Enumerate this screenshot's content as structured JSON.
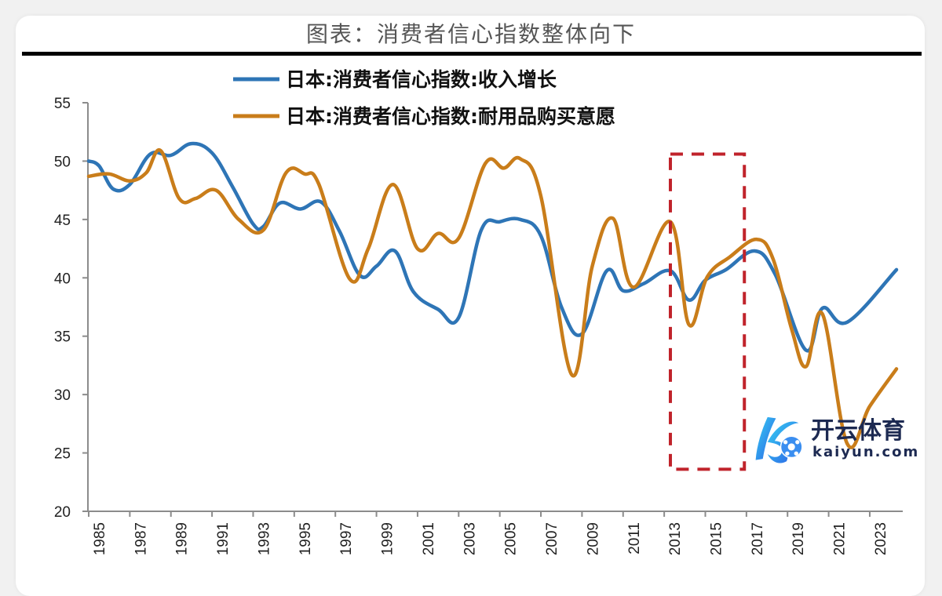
{
  "title": "图表：消费者信心指数整体向下",
  "chart_data": {
    "type": "line",
    "title": "图表：消费者信心指数整体向下",
    "xlabel": "",
    "ylabel": "",
    "xlim": [
      1985,
      2024.3
    ],
    "ylim": [
      20,
      55
    ],
    "yticks": [
      20,
      25,
      30,
      35,
      40,
      45,
      50,
      55
    ],
    "xtick_labels": [
      "1985",
      "1987",
      "1989",
      "1991",
      "1993",
      "1995",
      "1997",
      "1999",
      "2001",
      "2003",
      "2005",
      "2007",
      "2009",
      "2011",
      "2013",
      "2015",
      "2017",
      "2019",
      "2021",
      "2023"
    ],
    "legend_position": "top-center",
    "grid": false,
    "series": [
      {
        "name": "日本:消费者信心指数:收入增长",
        "color": "#2e75b6",
        "points": [
          [
            1985.0,
            50.0
          ],
          [
            1985.5,
            49.6
          ],
          [
            1986.2,
            47.6
          ],
          [
            1987.0,
            48.0
          ],
          [
            1988.0,
            50.6
          ],
          [
            1989.0,
            50.5
          ],
          [
            1990.0,
            51.5
          ],
          [
            1991.0,
            50.7
          ],
          [
            1992.0,
            47.8
          ],
          [
            1993.0,
            44.6
          ],
          [
            1993.5,
            44.4
          ],
          [
            1994.3,
            46.4
          ],
          [
            1995.3,
            45.9
          ],
          [
            1996.3,
            46.5
          ],
          [
            1997.2,
            44.0
          ],
          [
            1998.2,
            40.2
          ],
          [
            1999.0,
            41.0
          ],
          [
            1999.9,
            42.3
          ],
          [
            2000.8,
            38.8
          ],
          [
            2002.0,
            37.3
          ],
          [
            2003.0,
            36.6
          ],
          [
            2004.1,
            44.1
          ],
          [
            2005.0,
            44.8
          ],
          [
            2006.0,
            45.0
          ],
          [
            2007.0,
            43.6
          ],
          [
            2008.0,
            37.5
          ],
          [
            2009.0,
            35.2
          ],
          [
            2010.2,
            40.6
          ],
          [
            2011.0,
            38.9
          ],
          [
            2012.0,
            39.5
          ],
          [
            2013.3,
            40.6
          ],
          [
            2014.2,
            38.1
          ],
          [
            2015.0,
            39.8
          ],
          [
            2016.0,
            40.7
          ],
          [
            2017.4,
            42.3
          ],
          [
            2018.4,
            40.3
          ],
          [
            2019.9,
            33.8
          ],
          [
            2020.7,
            37.4
          ],
          [
            2021.9,
            36.2
          ],
          [
            2024.3,
            40.7
          ]
        ]
      },
      {
        "name": "日本:消费者信心指数:耐用品购买意愿",
        "color": "#c97d1a",
        "points": [
          [
            1985.0,
            48.7
          ],
          [
            1986.0,
            48.9
          ],
          [
            1987.0,
            48.3
          ],
          [
            1987.8,
            49.0
          ],
          [
            1988.5,
            50.9
          ],
          [
            1989.4,
            46.8
          ],
          [
            1990.2,
            46.8
          ],
          [
            1991.2,
            47.5
          ],
          [
            1992.3,
            45.0
          ],
          [
            1993.5,
            44.1
          ],
          [
            1994.6,
            49.0
          ],
          [
            1995.5,
            48.9
          ],
          [
            1996.2,
            48.0
          ],
          [
            1997.7,
            39.9
          ],
          [
            1998.6,
            42.5
          ],
          [
            1999.8,
            48.0
          ],
          [
            2001.0,
            42.5
          ],
          [
            2002.0,
            43.8
          ],
          [
            2003.0,
            43.4
          ],
          [
            2004.3,
            49.8
          ],
          [
            2005.2,
            49.4
          ],
          [
            2006.0,
            50.2
          ],
          [
            2007.0,
            47.0
          ],
          [
            2008.5,
            31.7
          ],
          [
            2009.5,
            41.0
          ],
          [
            2010.5,
            45.1
          ],
          [
            2011.5,
            39.2
          ],
          [
            2013.3,
            44.8
          ],
          [
            2014.2,
            36.0
          ],
          [
            2015.1,
            40.1
          ],
          [
            2016.2,
            41.8
          ],
          [
            2017.5,
            43.3
          ],
          [
            2018.3,
            41.6
          ],
          [
            2019.2,
            35.6
          ],
          [
            2019.9,
            32.4
          ],
          [
            2020.7,
            36.9
          ],
          [
            2021.9,
            25.8
          ],
          [
            2023.0,
            29.0
          ],
          [
            2024.3,
            32.2
          ]
        ]
      }
    ],
    "annotations": [
      {
        "type": "dashed-rectangle",
        "color": "#c0232b",
        "x_range": [
          2013.3,
          2016.9
        ],
        "y_range": [
          23.6,
          50.6
        ]
      }
    ]
  },
  "watermark": {
    "brand_cn": "开云体育",
    "brand_en": "kaiyun.com",
    "logo_icon": "kaiyun-k-soccer-ball-logo"
  }
}
